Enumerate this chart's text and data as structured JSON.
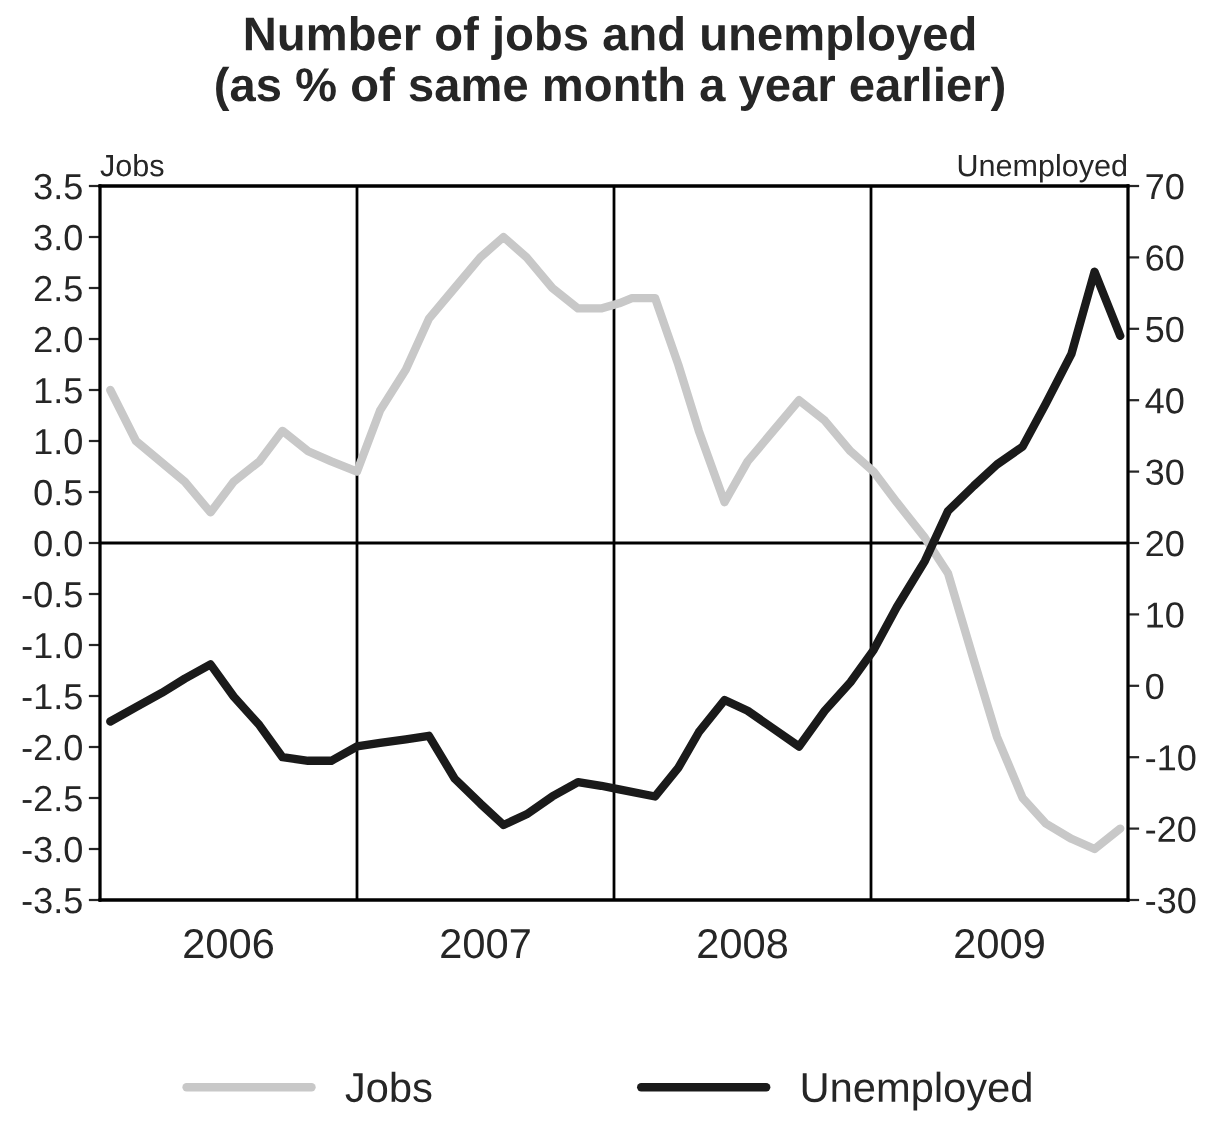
{
  "chart_data": {
    "type": "line",
    "title": "Number of jobs and unemployed\n(as % of same month a year earlier)",
    "ylabel": "Jobs",
    "y2label": "Unemployed",
    "xlim": [
      2006,
      2010
    ],
    "xticks": [
      {
        "value": 2006.5,
        "label": "2006"
      },
      {
        "value": 2007.5,
        "label": "2007"
      },
      {
        "value": 2008.5,
        "label": "2008"
      },
      {
        "value": 2009.5,
        "label": "2009"
      }
    ],
    "ylim": [
      -3.5,
      3.5
    ],
    "yticks": [
      {
        "value": 3.5,
        "label": "3.5"
      },
      {
        "value": 3.0,
        "label": "3.0"
      },
      {
        "value": 2.5,
        "label": "2.5"
      },
      {
        "value": 2.0,
        "label": "2.0"
      },
      {
        "value": 1.5,
        "label": "1.5"
      },
      {
        "value": 1.0,
        "label": "1.0"
      },
      {
        "value": 0.5,
        "label": "0.5"
      },
      {
        "value": 0,
        "label": "0.0"
      },
      {
        "value": -0.5,
        "label": "-0.5"
      },
      {
        "value": -1.0,
        "label": "-1.0"
      },
      {
        "value": -1.5,
        "label": "-1.5"
      },
      {
        "value": -2.0,
        "label": "-2.0"
      },
      {
        "value": -2.5,
        "label": "-2.5"
      },
      {
        "value": -3.0,
        "label": "-3.0"
      },
      {
        "value": -3.5,
        "label": "-3.5"
      }
    ],
    "y2lim": [
      -30,
      70
    ],
    "y2ticks": [
      70,
      60,
      50,
      40,
      30,
      20,
      10,
      0,
      -10,
      -20,
      -30
    ],
    "series": [
      {
        "name": "Jobs",
        "color": "#c8c8c8",
        "x": [
          2006.04,
          2006.14,
          2006.33,
          2006.43,
          2006.52,
          2006.62,
          2006.71,
          2006.81,
          2006.9,
          2007.0,
          2007.09,
          2007.19,
          2007.28,
          2007.38,
          2007.48,
          2007.57,
          2007.66,
          2007.76,
          2007.86,
          2007.95,
          2008.02,
          2008.07,
          2008.16,
          2008.25,
          2008.33,
          2008.43,
          2008.52,
          2008.62,
          2008.72,
          2008.82,
          2008.92,
          2009.01,
          2009.1,
          2009.21,
          2009.3,
          2009.4,
          2009.49,
          2009.59,
          2009.68,
          2009.78,
          2009.87,
          2009.97
        ],
        "values": [
          1.5,
          1.0,
          0.6,
          0.3,
          0.6,
          0.8,
          1.1,
          0.9,
          0.8,
          0.7,
          1.3,
          1.7,
          2.2,
          2.5,
          2.8,
          3.0,
          2.8,
          2.5,
          2.3,
          2.3,
          2.35,
          2.4,
          2.4,
          1.75,
          1.1,
          0.4,
          0.8,
          1.1,
          1.4,
          1.2,
          0.9,
          0.7,
          0.4,
          0.05,
          -0.3,
          -1.15,
          -1.9,
          -2.5,
          -2.75,
          -2.9,
          -3.0,
          -2.8
        ]
      },
      {
        "name": "Unemployed",
        "color": "#1a1a1a",
        "axis": "y2",
        "x": [
          2006.04,
          2006.14,
          2006.24,
          2006.33,
          2006.43,
          2006.52,
          2006.62,
          2006.71,
          2006.81,
          2006.9,
          2007.0,
          2007.09,
          2007.19,
          2007.28,
          2007.38,
          2007.48,
          2007.57,
          2007.66,
          2007.76,
          2007.86,
          2007.95,
          2008.02,
          2008.16,
          2008.25,
          2008.33,
          2008.43,
          2008.52,
          2008.62,
          2008.72,
          2008.82,
          2008.92,
          2009.01,
          2009.1,
          2009.21,
          2009.3,
          2009.4,
          2009.49,
          2009.59,
          2009.68,
          2009.78,
          2009.87,
          2009.97
        ],
        "values": [
          -5,
          -3,
          -1,
          1,
          3,
          -1.5,
          -5.5,
          -10,
          -10.5,
          -10.5,
          -8.5,
          -8,
          -7.5,
          -7,
          -13,
          -16.5,
          -19.5,
          -18,
          -15.5,
          -13.5,
          -14,
          -14.5,
          -15.5,
          -11.5,
          -6.5,
          -2,
          -3.5,
          -6,
          -8.5,
          -3.5,
          0.5,
          5,
          11,
          17.5,
          24.5,
          28,
          31,
          33.5,
          39.5,
          46.5,
          58,
          49
        ]
      }
    ],
    "ref_lines": [
      {
        "axis": "x",
        "value": 2007,
        "color": "#000000"
      },
      {
        "axis": "x",
        "value": 2008,
        "color": "#000000"
      },
      {
        "axis": "x",
        "value": 2009,
        "color": "#000000"
      },
      {
        "axis": "y",
        "value": 0,
        "color": "#000000"
      }
    ],
    "legend": "bottom",
    "grid": false
  }
}
